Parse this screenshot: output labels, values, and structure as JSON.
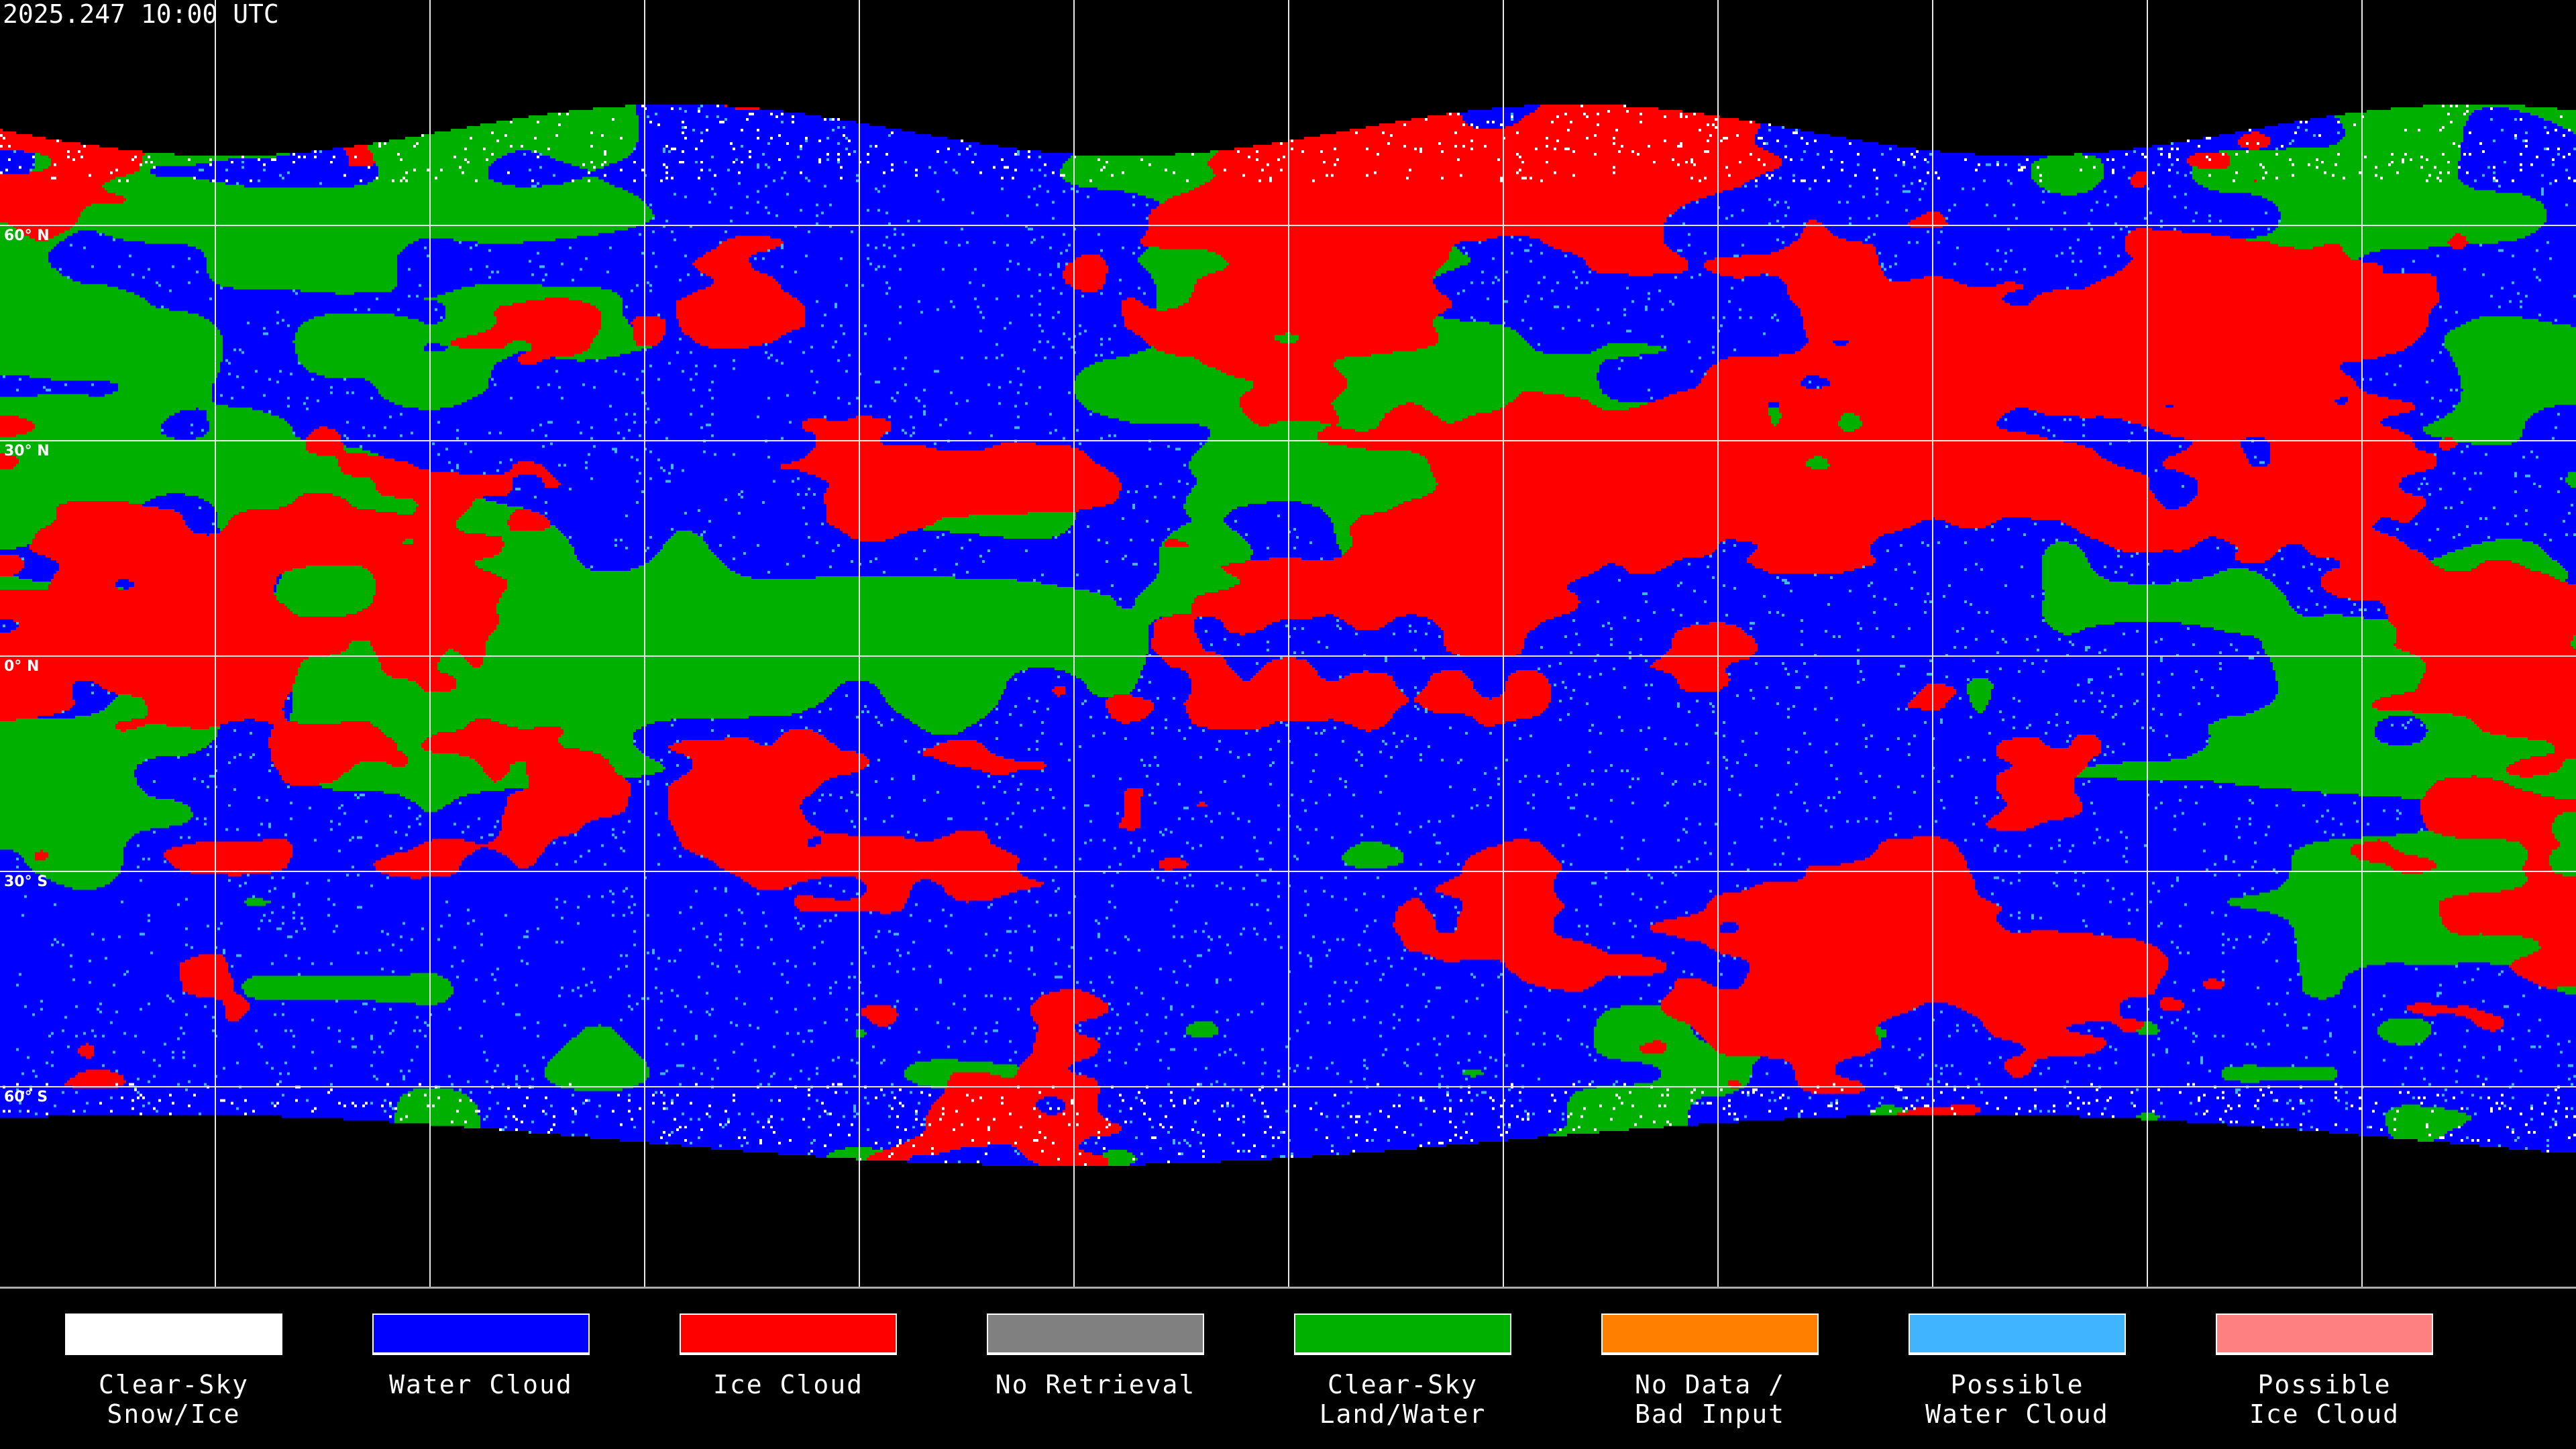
{
  "title": "2025.247 10:00 UTC",
  "latitude_labels": [
    "60° N",
    "30° N",
    "0° N",
    "30° S",
    "60° S"
  ],
  "legend": [
    {
      "label": "Clear-Sky\nSnow/Ice",
      "color": "#ffffff"
    },
    {
      "label": "Water Cloud",
      "color": "#0000ff"
    },
    {
      "label": "Ice Cloud",
      "color": "#ff0000"
    },
    {
      "label": "No Retrieval",
      "color": "#808080"
    },
    {
      "label": "Clear-Sky\nLand/Water",
      "color": "#00b000"
    },
    {
      "label": "No Data /\nBad Input",
      "color": "#ff8000"
    },
    {
      "label": "Possible\nWater Cloud",
      "color": "#40b4ff"
    },
    {
      "label": "Possible\nIce Cloud",
      "color": "#ff8080"
    }
  ],
  "map": {
    "projection": "equirectangular",
    "gridline_spacing_degrees": 30,
    "gridline_color": "#e8e8e8",
    "coastline_color": "#ffffff",
    "background_color": "#000000"
  }
}
